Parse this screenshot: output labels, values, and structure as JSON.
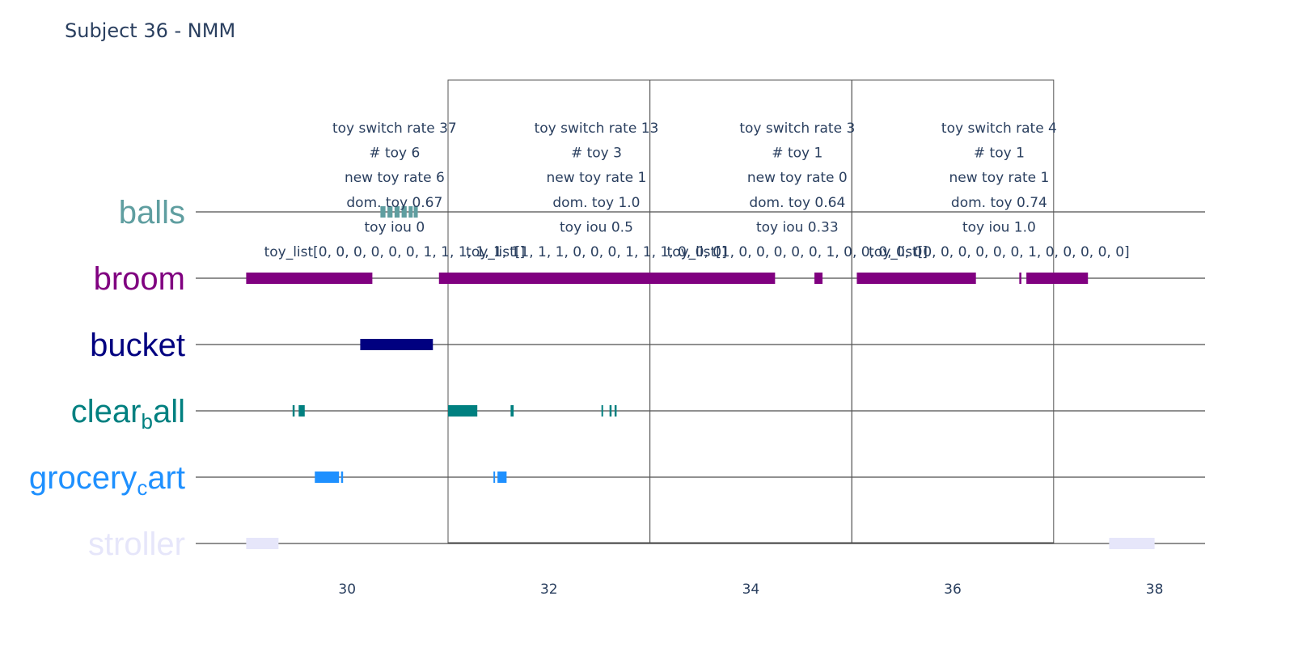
{
  "chart_data": {
    "type": "timeline",
    "title": "Subject 36 - NMM",
    "xlim": [
      28.5,
      38.5
    ],
    "x_ticks": [
      30,
      32,
      34,
      36,
      38
    ],
    "x_tick_labels": [
      "30",
      "32",
      "34",
      "36",
      "38"
    ],
    "categories": [
      {
        "name": "balls",
        "label": "balls",
        "sub": "",
        "suffix": "",
        "color": "#5f9ea0",
        "opacity": 1
      },
      {
        "name": "broom",
        "label": "broom",
        "sub": "",
        "suffix": "",
        "color": "#800080",
        "opacity": 1
      },
      {
        "name": "bucket",
        "label": "bucket",
        "sub": "",
        "suffix": "",
        "color": "#000080",
        "opacity": 1
      },
      {
        "name": "clear_ball",
        "label": "clear",
        "sub": "b",
        "suffix": "all",
        "color": "#008080",
        "opacity": 1
      },
      {
        "name": "grocery_cart",
        "label": "grocery",
        "sub": "c",
        "suffix": "art",
        "color": "#1e90ff",
        "opacity": 1
      },
      {
        "name": "stroller",
        "label": "stroller",
        "sub": "",
        "suffix": "",
        "color": "#e6e6fa",
        "opacity": 1
      }
    ],
    "bars": [
      {
        "category": "balls",
        "segments": [
          [
            30.33,
            30.38
          ],
          [
            30.4,
            30.45
          ],
          [
            30.47,
            30.52
          ],
          [
            30.54,
            30.59
          ],
          [
            30.61,
            30.65
          ],
          [
            30.66,
            30.7
          ]
        ]
      },
      {
        "category": "broom",
        "segments": [
          [
            29.0,
            30.25
          ],
          [
            30.91,
            34.24
          ],
          [
            34.63,
            34.71
          ],
          [
            35.05,
            36.23
          ],
          [
            36.66,
            36.68
          ],
          [
            36.73,
            37.34
          ]
        ]
      },
      {
        "category": "bucket",
        "segments": [
          [
            30.13,
            30.85
          ]
        ]
      },
      {
        "category": "clear_ball",
        "segments": [
          [
            29.46,
            29.48
          ],
          [
            29.52,
            29.58
          ],
          [
            31.0,
            31.29
          ],
          [
            31.62,
            31.65
          ],
          [
            32.52,
            32.53
          ],
          [
            32.6,
            32.62
          ],
          [
            32.65,
            32.67
          ]
        ]
      },
      {
        "category": "grocery_cart",
        "segments": [
          [
            29.68,
            29.92
          ],
          [
            29.94,
            29.96
          ],
          [
            31.45,
            31.46
          ],
          [
            31.49,
            31.58
          ]
        ]
      },
      {
        "category": "stroller",
        "segments": [
          [
            29.0,
            29.32
          ],
          [
            37.55,
            38.0
          ]
        ]
      }
    ],
    "windows": [
      {
        "x0": 31,
        "x1": 33
      },
      {
        "x0": 33,
        "x1": 35
      },
      {
        "x0": 35,
        "x1": 37
      }
    ],
    "annotations": [
      {
        "x": 30.47,
        "lines": [
          "toy switch rate 37",
          "# toy 6",
          "new toy rate 6",
          "dom. toy 0.67",
          "toy iou 0",
          "toy_list[0, 0, 0, 0, 0, 0, 1, 1, 1, 1, 1, 1]"
        ]
      },
      {
        "x": 32.47,
        "lines": [
          "toy switch rate 13",
          "# toy 3",
          "new toy rate 1",
          "dom. toy 1.0",
          "toy iou 0.5",
          "toy_list[1, 1, 1, 0, 0, 0, 1, 1, 1, 0, 0, 0]"
        ]
      },
      {
        "x": 34.46,
        "lines": [
          "toy switch rate 3",
          "# toy 1",
          "new toy rate 0",
          "dom. toy 0.64",
          "toy iou 0.33",
          "toy_list[1, 0, 0, 0, 0, 0, 1, 0, 0, 0, 0, 0]"
        ]
      },
      {
        "x": 36.46,
        "lines": [
          "toy switch rate 4",
          "# toy 1",
          "new toy rate 1",
          "dom. toy 0.74",
          "toy iou 1.0",
          "toy_list[0, 0, 0, 0, 0, 0, 1, 0, 0, 0, 0, 0]"
        ]
      }
    ],
    "grid": true,
    "legend": "none"
  }
}
